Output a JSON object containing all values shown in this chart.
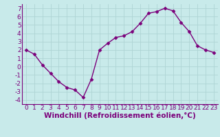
{
  "x": [
    0,
    1,
    2,
    3,
    4,
    5,
    6,
    7,
    8,
    9,
    10,
    11,
    12,
    13,
    14,
    15,
    16,
    17,
    18,
    19,
    20,
    21,
    22,
    23
  ],
  "y": [
    2,
    1.5,
    0.2,
    -0.8,
    -1.8,
    -2.5,
    -2.8,
    -3.7,
    -1.5,
    2.0,
    2.8,
    3.5,
    3.7,
    4.2,
    5.2,
    6.4,
    6.6,
    7.0,
    6.7,
    5.3,
    4.2,
    2.5,
    2.0,
    1.7
  ],
  "line_color": "#7b007b",
  "marker": "D",
  "marker_size": 2.5,
  "bg_color": "#c8eaea",
  "grid_color": "#aed4d4",
  "xlabel": "Windchill (Refroidissement éolien,°C)",
  "xlim": [
    -0.5,
    23.5
  ],
  "ylim": [
    -4.5,
    7.5
  ],
  "yticks": [
    -4,
    -3,
    -2,
    -1,
    0,
    1,
    2,
    3,
    4,
    5,
    6,
    7
  ],
  "xticks": [
    0,
    1,
    2,
    3,
    4,
    5,
    6,
    7,
    8,
    9,
    10,
    11,
    12,
    13,
    14,
    15,
    16,
    17,
    18,
    19,
    20,
    21,
    22,
    23
  ],
  "tick_label_size": 6.5,
  "xlabel_size": 7.5,
  "xlabel_color": "#7b007b",
  "tick_color": "#7b007b",
  "line_width": 1.0,
  "spine_color": "#7b007b"
}
